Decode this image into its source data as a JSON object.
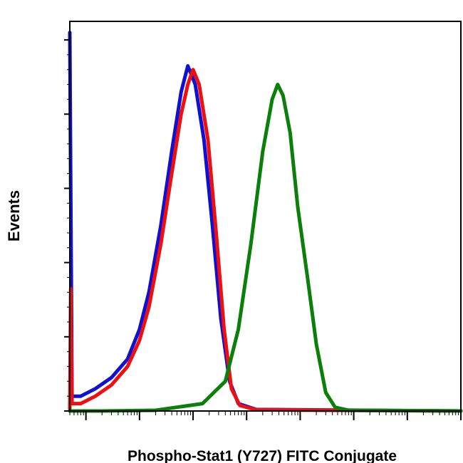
{
  "chart_data": {
    "type": "line",
    "title": "",
    "xlabel": "Phospho-Stat1 (Y727) FITC Conjugate",
    "ylabel": "Events",
    "xscale": "log",
    "xlim": [
      0.5,
      10000000
    ],
    "ylim": [
      0,
      1.05
    ],
    "grid": false,
    "legend": "none",
    "series": [
      {
        "color": "#1010d0",
        "points": [
          [
            0.5,
            1.02
          ],
          [
            0.52,
            0.6
          ],
          [
            0.55,
            0.04
          ],
          [
            0.8,
            0.04
          ],
          [
            1.5,
            0.06
          ],
          [
            3,
            0.09
          ],
          [
            6,
            0.14
          ],
          [
            10,
            0.22
          ],
          [
            15,
            0.32
          ],
          [
            25,
            0.5
          ],
          [
            40,
            0.7
          ],
          [
            60,
            0.86
          ],
          [
            80,
            0.93
          ],
          [
            110,
            0.88
          ],
          [
            160,
            0.73
          ],
          [
            230,
            0.5
          ],
          [
            330,
            0.25
          ],
          [
            480,
            0.08
          ],
          [
            700,
            0.02
          ],
          [
            1500,
            0.004
          ],
          [
            10000000,
            0
          ]
        ]
      },
      {
        "color": "#ee1010",
        "points": [
          [
            0.5,
            0.005
          ],
          [
            0.52,
            0.33
          ],
          [
            0.55,
            0.02
          ],
          [
            0.8,
            0.02
          ],
          [
            1.5,
            0.04
          ],
          [
            3,
            0.07
          ],
          [
            6,
            0.12
          ],
          [
            10,
            0.19
          ],
          [
            15,
            0.28
          ],
          [
            25,
            0.45
          ],
          [
            40,
            0.64
          ],
          [
            60,
            0.8
          ],
          [
            80,
            0.88
          ],
          [
            100,
            0.92
          ],
          [
            130,
            0.88
          ],
          [
            190,
            0.73
          ],
          [
            270,
            0.48
          ],
          [
            380,
            0.22
          ],
          [
            520,
            0.06
          ],
          [
            750,
            0.015
          ],
          [
            1500,
            0.003
          ],
          [
            10000000,
            0
          ]
        ]
      },
      {
        "color": "#0a800a",
        "points": [
          [
            0.5,
            0
          ],
          [
            2,
            0
          ],
          [
            20,
            0.002
          ],
          [
            150,
            0.02
          ],
          [
            400,
            0.08
          ],
          [
            700,
            0.22
          ],
          [
            1200,
            0.45
          ],
          [
            2000,
            0.7
          ],
          [
            3000,
            0.84
          ],
          [
            3800,
            0.88
          ],
          [
            4800,
            0.85
          ],
          [
            6500,
            0.75
          ],
          [
            9000,
            0.55
          ],
          [
            14000,
            0.35
          ],
          [
            20000,
            0.18
          ],
          [
            30000,
            0.05
          ],
          [
            45000,
            0.01
          ],
          [
            80000,
            0.002
          ],
          [
            10000000,
            0
          ]
        ]
      }
    ]
  }
}
